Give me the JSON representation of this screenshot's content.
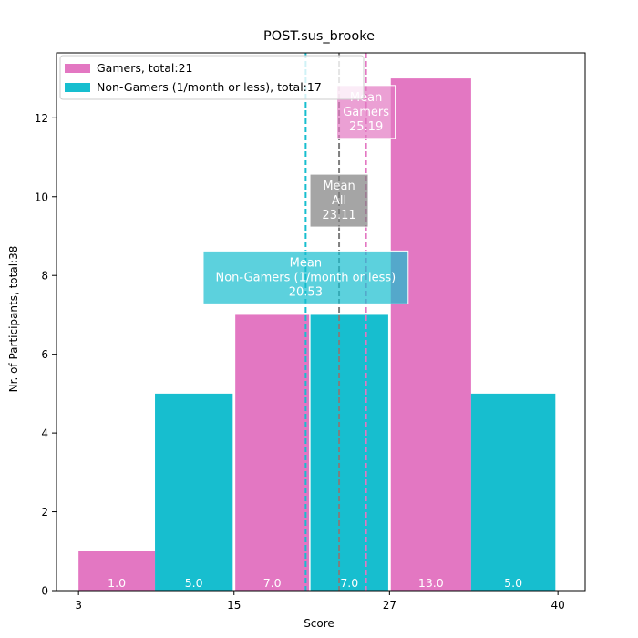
{
  "chart_data": {
    "type": "bar",
    "title": "POST.sus_brooke",
    "xlabel": "Score",
    "ylabel": "Nr. of Participants, total:38",
    "xlim": [
      1.3,
      42.1
    ],
    "ylim": [
      0,
      13.65
    ],
    "xticks": [
      3,
      15,
      27,
      40
    ],
    "yticks": [
      0,
      2,
      4,
      6,
      8,
      10,
      12
    ],
    "legend_position": "top-left",
    "bars": [
      {
        "series": "Gamers",
        "x0": 3.0,
        "x1": 8.9,
        "value": 1,
        "label": "1.0"
      },
      {
        "series": "Non-Gamers",
        "x0": 8.9,
        "x1": 14.9,
        "value": 5,
        "label": "5.0"
      },
      {
        "series": "Gamers",
        "x0": 15.1,
        "x1": 20.8,
        "value": 7,
        "label": "7.0"
      },
      {
        "series": "Non-Gamers",
        "x0": 20.9,
        "x1": 26.9,
        "value": 7,
        "label": "7.0"
      },
      {
        "series": "Gamers",
        "x0": 27.1,
        "x1": 33.3,
        "value": 13,
        "label": "13.0"
      },
      {
        "series": "Non-Gamers",
        "x0": 33.3,
        "x1": 39.8,
        "value": 5,
        "label": "5.0"
      }
    ],
    "series": [
      {
        "key": "Gamers",
        "name": "Gamers, total:21",
        "color": "#e377c2"
      },
      {
        "key": "Non-Gamers",
        "name": "Non-Gamers (1/month or less), total:17",
        "color": "#17becf"
      }
    ],
    "means": [
      {
        "key": "Gamers",
        "value": 25.19,
        "lines": [
          "Mean",
          "Gamers",
          "25.19"
        ],
        "color": "#e377c2",
        "box_y": 12.15
      },
      {
        "key": "All",
        "value": 23.11,
        "lines": [
          "Mean",
          "All",
          "23.11"
        ],
        "color": "#7f7f7f",
        "box_y": 9.9
      },
      {
        "key": "Non-Gamers",
        "value": 20.53,
        "lines": [
          "Mean",
          "Non-Gamers (1/month or less)",
          "20.53"
        ],
        "color": "#17becf",
        "box_y": 7.95
      }
    ]
  }
}
